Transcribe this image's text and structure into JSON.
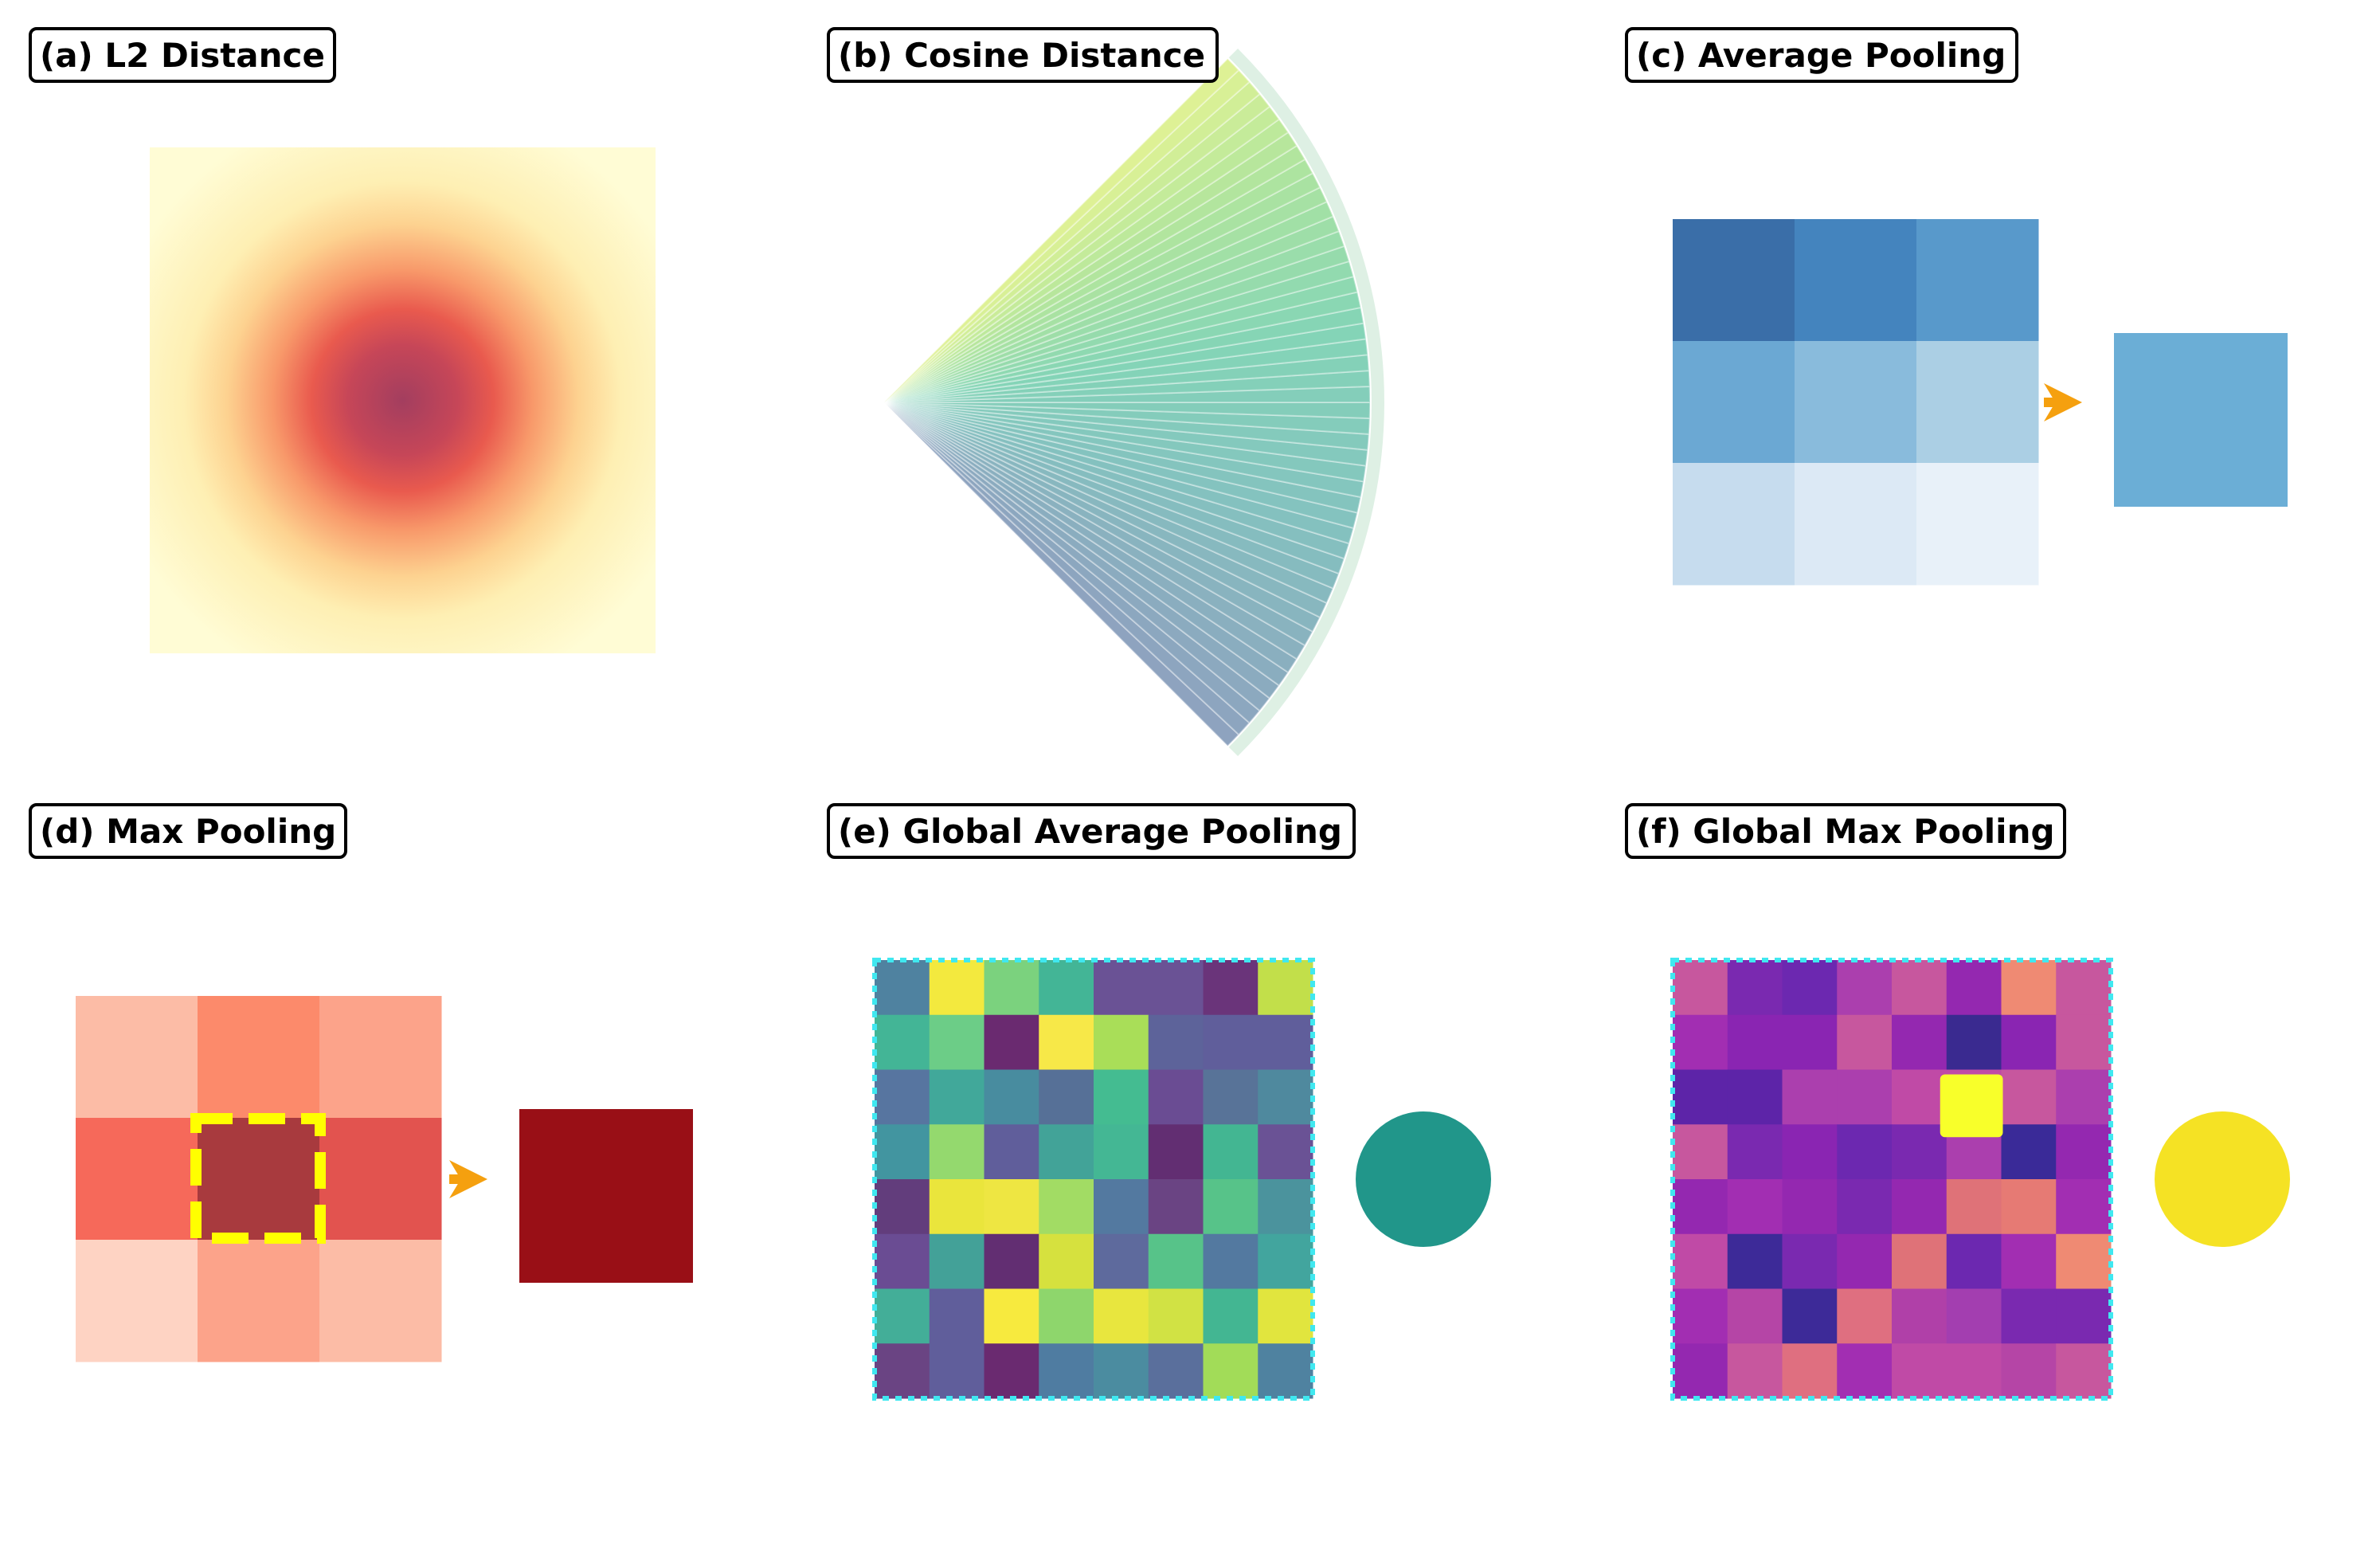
{
  "panels": [
    {
      "id": "a",
      "title": "(a) L2 Distance"
    },
    {
      "id": "b",
      "title": "(b) Cosine Distance"
    },
    {
      "id": "c",
      "title": "(c) Average Pooling"
    },
    {
      "id": "d",
      "title": "(d) Max Pooling"
    },
    {
      "id": "e",
      "title": "(e) Global Average Pooling"
    },
    {
      "id": "f",
      "title": "(f) Global Max Pooling"
    }
  ],
  "colors": {
    "arrow": "#f5a00f",
    "highlight": "#ffff00",
    "grid_border": "#40e8f0",
    "avg_output": "#6baed6",
    "max_output": "#990f16",
    "gap_output": "#21968a",
    "gmp_output": "#f5e224"
  },
  "avg_pool_grid": [
    [
      "#3a6ea8",
      "#4484be",
      "#5899cb"
    ],
    [
      "#6ba8d3",
      "#89bbdc",
      "#abcfe4"
    ],
    [
      "#c6dcee",
      "#dce9f5",
      "#e8f1f9"
    ]
  ],
  "max_pool_grid": [
    [
      "#fcbca6",
      "#fc8a6b",
      "#fca38a"
    ],
    [
      "#f6695a",
      "#a83a3e",
      "#e2534f"
    ],
    [
      "#fed3c3",
      "#fca38a",
      "#fcbca6"
    ]
  ],
  "gap_grid": [
    [
      "#4f82a0",
      "#f3e93e",
      "#7bd27e",
      "#43b596",
      "#6a5295",
      "#6a5295",
      "#6a347a",
      "#c2df4a"
    ],
    [
      "#43b596",
      "#6ccd87",
      "#6a2a70",
      "#f7e848",
      "#a9de58",
      "#5d639a",
      "#605e9b",
      "#605e9b"
    ],
    [
      "#5775a0",
      "#41a89a",
      "#488c9f",
      "#567097",
      "#44bc91",
      "#6a4c93",
      "#587398",
      "#4f899e"
    ],
    [
      "#4295a0",
      "#94d96e",
      "#605e9b",
      "#42a398",
      "#44b794",
      "#622e72",
      "#43b692",
      "#6a5295"
    ],
    [
      "#623d7c",
      "#eae53c",
      "#eee642",
      "#a2dc64",
      "#5379a0",
      "#6a4483",
      "#57c389",
      "#4b939d"
    ],
    [
      "#6a4c93",
      "#43a198",
      "#622e72",
      "#d6e13e",
      "#5e6a9d",
      "#57c389",
      "#5379a0",
      "#42a59e"
    ],
    [
      "#43ae98",
      "#605e9b",
      "#f7ea3e",
      "#8ed66c",
      "#e8e63e",
      "#d1e244",
      "#43b692",
      "#e1e53e"
    ],
    [
      "#6a4483",
      "#605e9b",
      "#6a2a70",
      "#4f7ca1",
      "#4b8ca0",
      "#5a6f9c",
      "#a2dc58",
      "#4f82a0"
    ]
  ],
  "gmp_grid": [
    [
      "#c7579e",
      "#7a29b0",
      "#6c28b0",
      "#ab3fae",
      "#c7579e",
      "#9428b0",
      "#ef8a73",
      "#c7579e"
    ],
    [
      "#a22eb2",
      "#8a25b2",
      "#8a25b2",
      "#c7579e",
      "#9428b0",
      "#3a2a90",
      "#8a25b2",
      "#c7579e"
    ],
    [
      "#5d24a8",
      "#5d24a8",
      "#ab3fae",
      "#ab3fae",
      "#c04aa6",
      "#c04aa6",
      "#c7579e",
      "#ab3fae"
    ],
    [
      "#c7579e",
      "#7a29b0",
      "#8a25b2",
      "#6c28b0",
      "#7a29b0",
      "#ab3fae",
      "#3a2a98",
      "#9428b0"
    ],
    [
      "#9428b0",
      "#a22eb2",
      "#9428b0",
      "#7a29b0",
      "#9428b0",
      "#df7278",
      "#e67a74",
      "#a22eb2"
    ],
    [
      "#c04aa6",
      "#3d2a98",
      "#7a29b0",
      "#9428b0",
      "#df7278",
      "#6c28b0",
      "#a22eb2",
      "#ef8a73"
    ],
    [
      "#a22eb2",
      "#b545a6",
      "#3d2a98",
      "#df6f80",
      "#b040a8",
      "#a33eb0",
      "#7a29b0",
      "#7a29b0"
    ],
    [
      "#9428b0",
      "#c7579e",
      "#df6f80",
      "#a22eb2",
      "#c04aa6",
      "#c04aa6",
      "#b545a6",
      "#c7579e"
    ]
  ],
  "gmp_max_cell": [
    2,
    5
  ]
}
